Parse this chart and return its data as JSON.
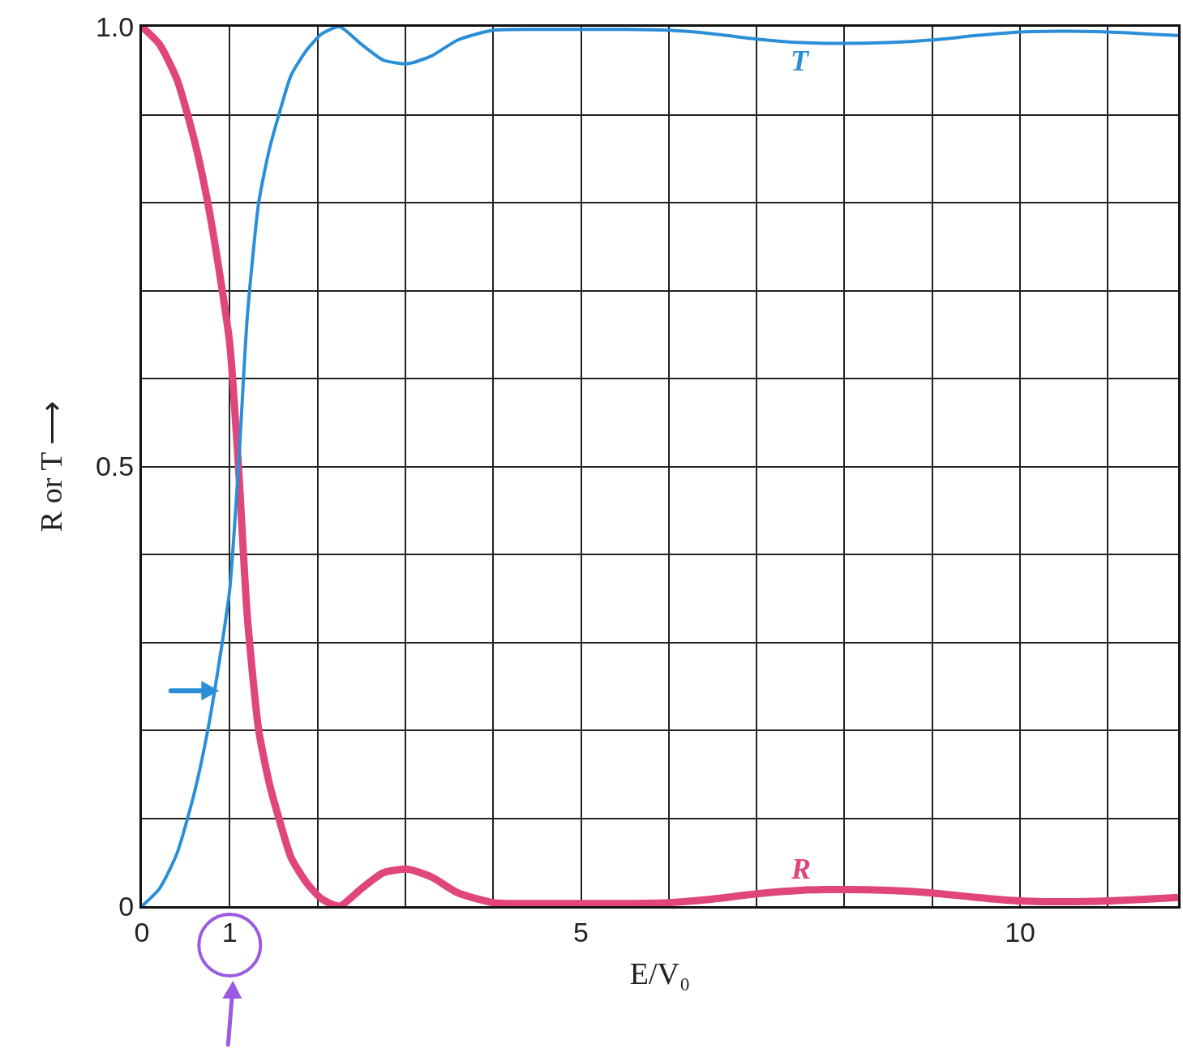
{
  "chart_data": {
    "type": "line",
    "xlabel": "E/V₀",
    "ylabel": "R or T ⟶",
    "xlim": [
      0,
      11.8
    ],
    "ylim": [
      0,
      1
    ],
    "xticks": [
      0,
      1,
      {
        "value": 2,
        "label": null
      },
      {
        "value": 3,
        "label": null
      },
      {
        "value": 4,
        "label": null
      },
      5,
      {
        "value": 6,
        "label": null
      },
      {
        "value": 7,
        "label": null
      },
      {
        "value": 8,
        "label": null
      },
      {
        "value": 9,
        "label": null
      },
      10,
      {
        "value": 11,
        "label": null
      }
    ],
    "yticks": [
      0,
      {
        "value": 0.1,
        "label": null
      },
      {
        "value": 0.2,
        "label": null
      },
      {
        "value": 0.3,
        "label": null
      },
      {
        "value": 0.4,
        "label": null
      },
      0.5,
      {
        "value": 0.6,
        "label": null
      },
      {
        "value": 0.7,
        "label": null
      },
      {
        "value": 0.8,
        "label": null
      },
      {
        "value": 0.9,
        "label": null
      },
      {
        "value": 1,
        "label": "1.0"
      }
    ],
    "grid": true,
    "legend": false,
    "marker": "none",
    "line_style": "solid",
    "series": [
      {
        "name": "R",
        "color": "#e0457b",
        "x": [
          0,
          0.2,
          0.4,
          0.6,
          0.75,
          0.9,
          1.0,
          1.1,
          1.2,
          1.33,
          1.45,
          1.56,
          1.7,
          1.88,
          2.05,
          2.25,
          2.5,
          2.75,
          3.03,
          3.3,
          3.6,
          4.0,
          4.5,
          5,
          5.5,
          6,
          6.5,
          7,
          7.5,
          8,
          8.5,
          9,
          9.5,
          10,
          10.5,
          11,
          11.8
        ],
        "values": [
          1,
          0.98,
          0.94,
          0.87,
          0.8,
          0.71,
          0.64,
          0.5,
          0.33,
          0.2,
          0.14,
          0.1,
          0.055,
          0.026,
          0.008,
          0,
          0.02,
          0.038,
          0.042,
          0.033,
          0.015,
          0.004,
          0.003,
          0.003,
          0.003,
          0.004,
          0.008,
          0.014,
          0.018,
          0.019,
          0.018,
          0.015,
          0.01,
          0.006,
          0.005,
          0.006,
          0.01
        ]
      },
      {
        "name": "T",
        "color": "#2b8fd8",
        "x": [
          0,
          0.2,
          0.4,
          0.6,
          0.75,
          0.9,
          1.0,
          1.1,
          1.2,
          1.33,
          1.45,
          1.56,
          1.7,
          1.88,
          2.05,
          2.25,
          2.5,
          2.75,
          3.03,
          3.3,
          3.6,
          4.0,
          4.5,
          5,
          5.5,
          6,
          6.5,
          7,
          7.5,
          8,
          8.5,
          9,
          9.5,
          10,
          10.5,
          11,
          11.8
        ],
        "values": [
          0,
          0.02,
          0.06,
          0.13,
          0.2,
          0.29,
          0.36,
          0.5,
          0.67,
          0.8,
          0.86,
          0.9,
          0.945,
          0.974,
          0.992,
          1,
          0.98,
          0.962,
          0.958,
          0.967,
          0.985,
          0.996,
          0.997,
          0.997,
          0.997,
          0.996,
          0.992,
          0.986,
          0.982,
          0.981,
          0.982,
          0.985,
          0.99,
          0.994,
          0.995,
          0.994,
          0.99
        ]
      }
    ]
  }
}
